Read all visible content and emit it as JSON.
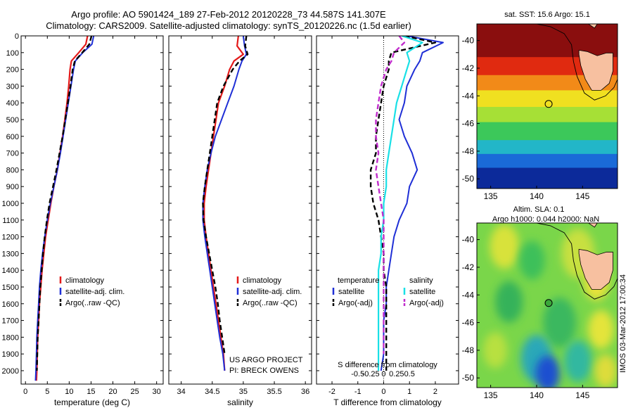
{
  "header": {
    "line1": "Argo profile: AO 5901424_189 27-Feb-2012 20120228_73 44.587S 141.307E",
    "line2": "Climatology: CARS2009. Satellite-adjusted climatology: synTS_20120226.nc (1.5d earlier)"
  },
  "colors": {
    "climatology": "#e41a1a",
    "satellite": "#1f2fd6",
    "argo": "#000000",
    "sal_satellite": "#19e0e6",
    "sal_argo": "#c02ccc"
  },
  "chart_data": [
    {
      "type": "line",
      "id": "temperature",
      "xlabel": "temperature (deg C)",
      "ylabel": "",
      "xlim": [
        -1,
        31.5
      ],
      "ylim": [
        2080,
        0
      ],
      "xticks": [
        0,
        5,
        10,
        15,
        20,
        25,
        30
      ],
      "xtick_labels": [
        "0",
        "5",
        "10",
        "15",
        "20",
        "25",
        "30"
      ],
      "yticks": [
        0,
        100,
        200,
        300,
        400,
        500,
        600,
        700,
        800,
        900,
        1000,
        1100,
        1200,
        1300,
        1400,
        1500,
        1600,
        1700,
        1800,
        1900,
        2000
      ],
      "legend": [
        "climatology",
        "satellite-adj. clim.",
        "Argo(..raw -QC)"
      ],
      "series": [
        {
          "name": "climatology",
          "style": "climatology",
          "x": [
            14.2,
            13.8,
            12.2,
            10.5,
            10.2,
            9.9,
            9.5,
            9.0,
            8.5,
            7.9,
            7.3,
            6.5,
            5.8,
            5.2,
            4.6,
            4.2,
            3.8,
            3.5,
            3.2,
            3.0,
            2.8,
            2.7,
            2.6,
            2.5
          ],
          "y": [
            0,
            50,
            100,
            150,
            200,
            300,
            400,
            500,
            600,
            700,
            800,
            900,
            1000,
            1100,
            1200,
            1300,
            1400,
            1500,
            1600,
            1700,
            1800,
            1900,
            2000,
            2060
          ]
        },
        {
          "name": "satellite-adj. clim.",
          "style": "satellite",
          "x": [
            15.6,
            15.2,
            13.1,
            11.4,
            11.0,
            10.4,
            9.8,
            9.2,
            8.6,
            8.0,
            7.3,
            6.5,
            5.7,
            5.0,
            4.4,
            3.9,
            3.5,
            3.2,
            3.0,
            2.8,
            2.6,
            2.5,
            2.4,
            2.3
          ],
          "y": [
            0,
            50,
            100,
            150,
            200,
            300,
            400,
            500,
            600,
            700,
            800,
            900,
            1000,
            1100,
            1200,
            1300,
            1400,
            1500,
            1600,
            1700,
            1800,
            1900,
            2000,
            2060
          ]
        },
        {
          "name": "Argo(..raw -QC)",
          "style": "argo",
          "x": [
            15.1,
            14.6,
            13.0,
            11.3,
            10.8,
            10.3,
            9.7,
            9.1,
            8.5,
            7.8,
            7.1,
            6.3,
            5.5,
            4.9,
            4.4,
            4.0,
            3.7,
            3.4,
            3.2,
            3.0,
            2.8,
            2.7,
            2.6
          ],
          "y": [
            0,
            50,
            100,
            150,
            200,
            300,
            400,
            500,
            600,
            700,
            800,
            900,
            1000,
            1100,
            1200,
            1300,
            1400,
            1500,
            1600,
            1700,
            1800,
            1900,
            2000
          ]
        }
      ]
    },
    {
      "type": "line",
      "id": "salinity",
      "xlabel": "salinity",
      "ylabel": "",
      "xlim": [
        33.8,
        36.1
      ],
      "ylim": [
        2080,
        0
      ],
      "xticks": [
        34,
        34.5,
        35,
        35.5,
        36
      ],
      "xtick_labels": [
        "34",
        "34.5",
        "35",
        "35.5",
        "36"
      ],
      "legend": [
        "climatology",
        "satellite-adj. clim.",
        "Argo(..raw -QC)"
      ],
      "annotations": [
        "US ARGO PROJECT",
        "PI: BRECK OWENS"
      ],
      "series": [
        {
          "name": "climatology",
          "style": "climatology",
          "x": [
            34.92,
            34.9,
            35.0,
            34.85,
            34.78,
            34.7,
            34.6,
            34.56,
            34.52,
            34.48,
            34.44,
            34.4,
            34.37,
            34.37,
            34.4,
            34.44,
            34.48,
            34.52,
            34.56,
            34.6,
            34.64,
            34.68,
            34.7
          ],
          "y": [
            0,
            60,
            110,
            150,
            200,
            300,
            400,
            500,
            600,
            700,
            800,
            900,
            1000,
            1100,
            1200,
            1300,
            1400,
            1500,
            1600,
            1700,
            1800,
            1900,
            2000
          ]
        },
        {
          "name": "satellite-adj. clim.",
          "style": "satellite",
          "x": [
            35.0,
            35.02,
            35.05,
            34.98,
            34.93,
            34.85,
            34.75,
            34.65,
            34.55,
            34.48,
            34.42,
            34.38,
            34.35,
            34.35,
            34.38,
            34.42,
            34.46,
            34.5,
            34.54,
            34.58,
            34.62,
            34.67,
            34.7
          ],
          "y": [
            0,
            60,
            110,
            150,
            200,
            300,
            400,
            500,
            600,
            700,
            800,
            900,
            1000,
            1100,
            1200,
            1300,
            1400,
            1500,
            1600,
            1700,
            1800,
            1900,
            2000
          ]
        },
        {
          "name": "Argo(..raw -QC)",
          "style": "argo",
          "x": [
            35.05,
            35.03,
            35.07,
            34.94,
            34.83,
            34.68,
            34.58,
            34.54,
            34.5,
            34.46,
            34.42,
            34.38,
            34.35,
            34.36,
            34.4,
            34.45,
            34.5,
            34.55,
            34.59,
            34.62,
            34.66,
            34.7
          ],
          "y": [
            0,
            60,
            110,
            150,
            200,
            300,
            400,
            500,
            600,
            700,
            800,
            900,
            1000,
            1100,
            1200,
            1300,
            1400,
            1500,
            1600,
            1700,
            1800,
            1900
          ]
        }
      ]
    },
    {
      "type": "line",
      "id": "difference",
      "xlabel": "T difference from climatology",
      "xlabel_top": "S difference from climatology",
      "ylabel": "",
      "xlim": [
        -2.6,
        2.9
      ],
      "ylim": [
        2080,
        0
      ],
      "xticks": [
        -2,
        -1,
        0,
        1,
        2
      ],
      "xtick_labels": [
        "-2",
        "-1",
        "0",
        "1",
        "2"
      ],
      "sticks": [
        -1,
        -0.5,
        0,
        0.5,
        1
      ],
      "stick_labels": [
        "-0.5",
        "-0.25",
        "0",
        "0.25",
        "0.5"
      ],
      "legend": [
        "temperature",
        "satellite",
        "Argo(-adj)",
        "salinity",
        "satellite",
        "Argo(-adj)"
      ],
      "series": [
        {
          "name": "satellite",
          "group": "temperature",
          "style": "satellite",
          "x": [
            0.9,
            2.3,
            1.5,
            1.4,
            1.2,
            0.9,
            0.8,
            0.6,
            0.8,
            1.1,
            1.3,
            1.0,
            0.9,
            0.6,
            0.4,
            0.3,
            0.2,
            0.1,
            0.1,
            0.0,
            0.0,
            0.0,
            -0.1
          ],
          "y": [
            0,
            40,
            100,
            150,
            200,
            300,
            400,
            500,
            600,
            700,
            800,
            900,
            1000,
            1100,
            1200,
            1300,
            1400,
            1500,
            1600,
            1700,
            1800,
            1900,
            2000
          ]
        },
        {
          "name": "Argo(-adj)",
          "group": "temperature",
          "style": "argo",
          "x": [
            0.8,
            2.0,
            0.3,
            0.2,
            0.2,
            0.0,
            -0.1,
            -0.2,
            -0.3,
            -0.3,
            -0.5,
            -0.5,
            -0.4,
            -0.2,
            -0.1,
            0.0,
            0.0,
            0.1,
            0.1,
            0.1,
            0.1,
            0.1,
            0.1
          ],
          "y": [
            0,
            40,
            100,
            150,
            200,
            300,
            400,
            500,
            600,
            700,
            800,
            900,
            1000,
            1100,
            1200,
            1300,
            1400,
            1500,
            1600,
            1700,
            1800,
            1900,
            2000
          ]
        },
        {
          "name": "satellite",
          "group": "salinity",
          "style": "sal_satellite",
          "x": [
            0.7,
            1.5,
            0.9,
            1.0,
            0.9,
            0.7,
            0.5,
            0.4,
            0.3,
            0.2,
            0.1,
            0.1,
            0.0,
            0.0,
            -0.1,
            -0.1,
            -0.2,
            -0.2,
            -0.2,
            -0.2,
            -0.2,
            -0.2,
            -0.2
          ],
          "y": [
            0,
            40,
            100,
            150,
            200,
            300,
            400,
            500,
            600,
            700,
            800,
            900,
            1000,
            1100,
            1200,
            1300,
            1400,
            1500,
            1600,
            1700,
            1800,
            1900,
            2000
          ]
        },
        {
          "name": "Argo(-adj)",
          "group": "salinity",
          "style": "sal_argo",
          "x": [
            0.6,
            0.8,
            0.4,
            0.3,
            0.1,
            -0.1,
            -0.2,
            -0.3,
            -0.3,
            -0.2,
            -0.3,
            -0.2,
            -0.1,
            0.0,
            0.0,
            0.0,
            0.0,
            0.0,
            0.0,
            0.0,
            0.0,
            0.0
          ],
          "y": [
            0,
            40,
            100,
            150,
            200,
            300,
            400,
            500,
            600,
            700,
            800,
            900,
            1000,
            1100,
            1200,
            1300,
            1400,
            1500,
            1600,
            1700,
            1800,
            1900
          ]
        }
      ]
    },
    {
      "type": "heatmap",
      "id": "sst_map",
      "title": "sat. SST: 15.6 Argo: 15.1",
      "xlim": [
        133.5,
        148.8
      ],
      "ylim": [
        -50.7,
        -38.8
      ],
      "xticks": [
        135,
        140,
        145
      ],
      "yticks": [
        -40,
        -42,
        -44,
        -46,
        -48,
        -50
      ],
      "ytick_labels": [
        "-40",
        "-42",
        "-44",
        "-46",
        "-48",
        "-50"
      ],
      "profile_marker": {
        "lon": 141.307,
        "lat": -44.587
      },
      "bands": [
        {
          "lat_top": -38.8,
          "lat_bot": -41.2,
          "color": "#8a0e0e"
        },
        {
          "lat_top": -41.2,
          "lat_bot": -42.5,
          "color": "#e02a10"
        },
        {
          "lat_top": -42.5,
          "lat_bot": -43.6,
          "color": "#f28a18"
        },
        {
          "lat_top": -43.6,
          "lat_bot": -44.8,
          "color": "#f0e020"
        },
        {
          "lat_top": -44.8,
          "lat_bot": -45.9,
          "color": "#a6e036"
        },
        {
          "lat_top": -45.9,
          "lat_bot": -47.2,
          "color": "#3cc85a"
        },
        {
          "lat_top": -47.2,
          "lat_bot": -48.2,
          "color": "#22b6c8"
        },
        {
          "lat_top": -48.2,
          "lat_bot": -49.2,
          "color": "#1a6ad8"
        },
        {
          "lat_top": -49.2,
          "lat_bot": -50.7,
          "color": "#0c2a9a"
        }
      ]
    },
    {
      "type": "heatmap",
      "id": "sla_map",
      "title": "Altim. SLA: 0.1",
      "subtitle": "Argo h1000: 0.044 h2000: NaN",
      "xlim": [
        133.5,
        148.8
      ],
      "ylim": [
        -50.7,
        -38.8
      ],
      "xticks": [
        135,
        140,
        145
      ],
      "yticks": [
        -40,
        -42,
        -44,
        -46,
        -48,
        -50
      ],
      "ytick_labels": [
        "-40",
        "-42",
        "-44",
        "-46",
        "-48",
        "-50"
      ],
      "profile_marker": {
        "lon": 141.307,
        "lat": -44.587
      },
      "background": "#7ad64a",
      "blobs": [
        {
          "lon": 136.5,
          "lat": -40.5,
          "r": 1.6,
          "color": "#d8e23a"
        },
        {
          "lon": 139.5,
          "lat": -41.5,
          "r": 1.4,
          "color": "#3ec05a"
        },
        {
          "lon": 144.5,
          "lat": -41.0,
          "r": 1.8,
          "color": "#c8e040"
        },
        {
          "lon": 146.5,
          "lat": -43.0,
          "r": 1.4,
          "color": "#e8e23a"
        },
        {
          "lon": 137.0,
          "lat": -44.5,
          "r": 1.5,
          "color": "#34b25a"
        },
        {
          "lon": 142.5,
          "lat": -46.0,
          "r": 1.8,
          "color": "#3ab85e"
        },
        {
          "lon": 147.0,
          "lat": -46.5,
          "r": 1.4,
          "color": "#e4e43a"
        },
        {
          "lon": 135.5,
          "lat": -48.0,
          "r": 1.3,
          "color": "#b8e040"
        },
        {
          "lon": 140.0,
          "lat": -48.6,
          "r": 1.7,
          "color": "#2aa8b8"
        },
        {
          "lon": 141.2,
          "lat": -49.7,
          "r": 1.3,
          "color": "#1a50d0"
        },
        {
          "lon": 144.5,
          "lat": -48.8,
          "r": 1.5,
          "color": "#30b8a0"
        },
        {
          "lon": 147.5,
          "lat": -49.5,
          "r": 1.2,
          "color": "#dedc3a"
        }
      ]
    }
  ],
  "sidebar_stamp": "IMOS 03-Mar-2012 17:00:34"
}
